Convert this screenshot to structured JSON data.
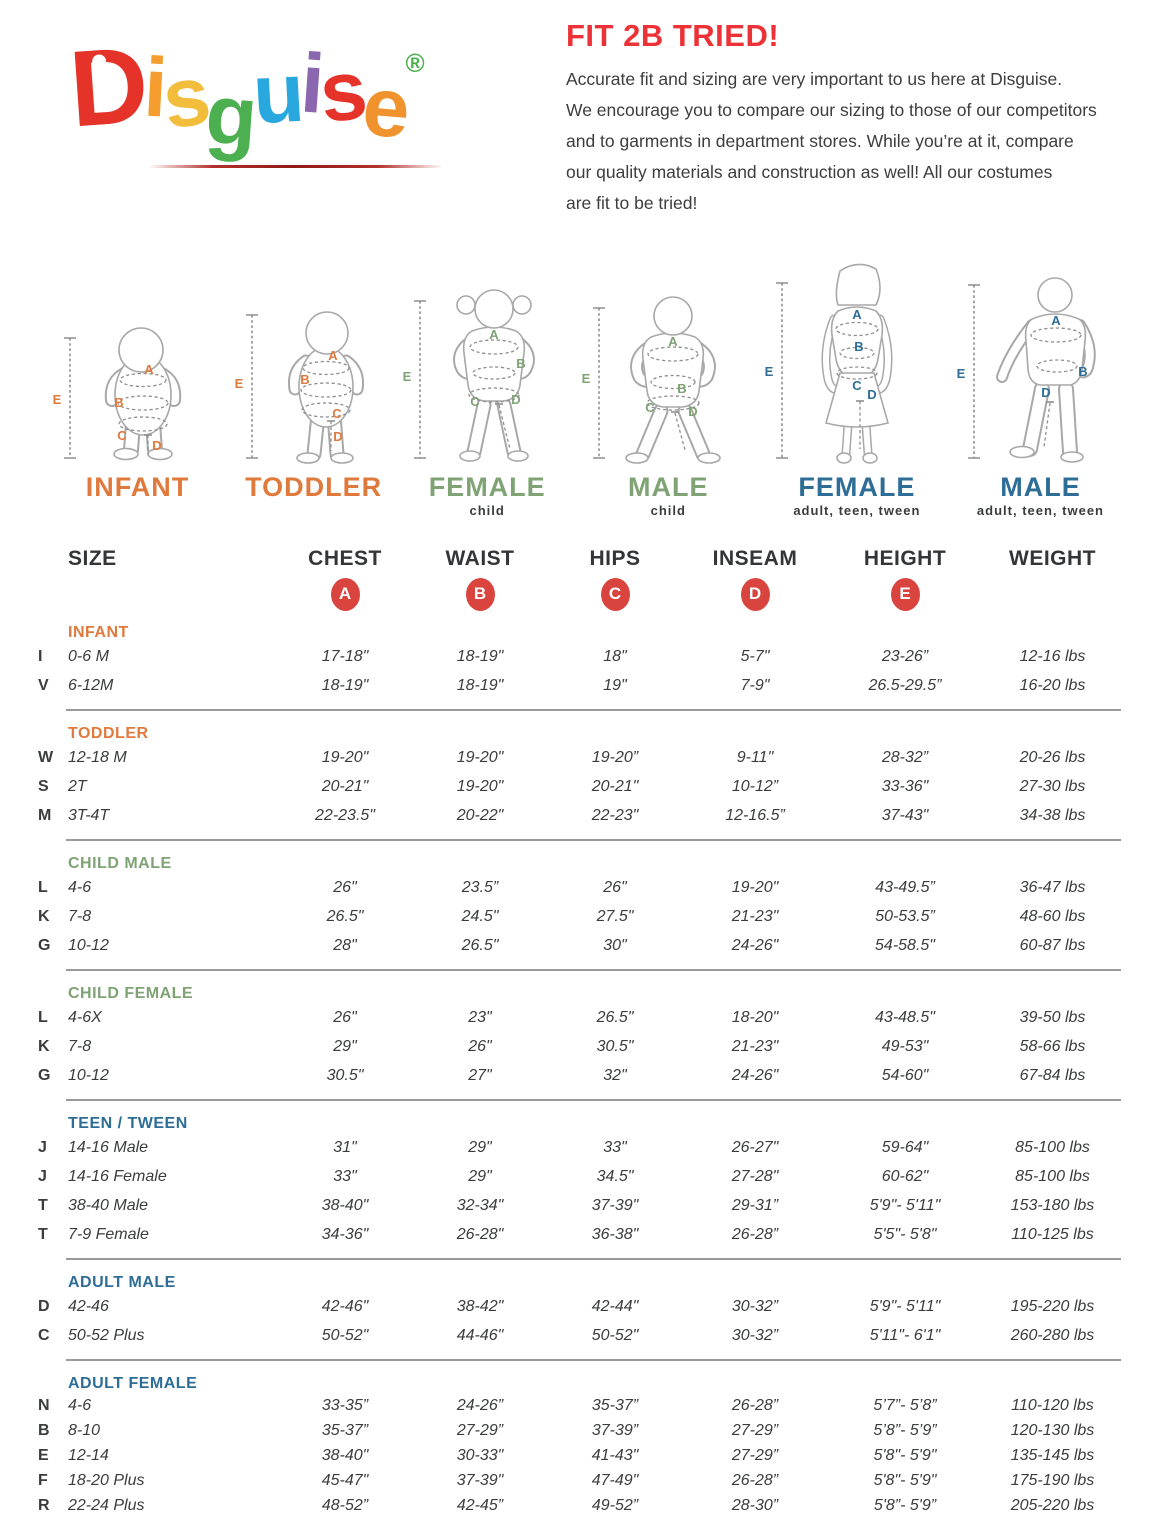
{
  "logo": {
    "letters": [
      {
        "char": "D",
        "color": "#e63329"
      },
      {
        "char": "i",
        "color": "#f59d2f"
      },
      {
        "char": "s",
        "color": "#f2bd3b"
      },
      {
        "char": "g",
        "color": "#4caf50"
      },
      {
        "char": "u",
        "color": "#29a8df"
      },
      {
        "char": "i",
        "color": "#8a67ae"
      },
      {
        "char": "s",
        "color": "#e63329"
      },
      {
        "char": "e",
        "color": "#f0932e"
      }
    ],
    "registered": "®",
    "registered_color": "#4caf50"
  },
  "intro": {
    "title": "FIT 2B TRIED!",
    "title_color": "#ed3237",
    "lines": [
      "Accurate fit and sizing are very important to us here at Disguise.",
      "We encourage you to compare our sizing to those of our competitors",
      "and to garments in department stores. While you’re at it, compare",
      "our quality materials and construction as well! All our costumes",
      "are fit to be tried!"
    ]
  },
  "figures": [
    {
      "label": "INFANT",
      "sublabel": "",
      "color": "#e0793c",
      "markers": [
        "A",
        "B",
        "C",
        "D"
      ],
      "measure_label": "E"
    },
    {
      "label": "TODDLER",
      "sublabel": "",
      "color": "#e0793c",
      "markers": [
        "A",
        "B",
        "C",
        "D"
      ],
      "measure_label": "E"
    },
    {
      "label": "FEMALE",
      "sublabel": "child",
      "color": "#7fa374",
      "markers": [
        "A",
        "B",
        "C",
        "D"
      ],
      "measure_label": "E"
    },
    {
      "label": "MALE",
      "sublabel": "child",
      "color": "#7fa374",
      "markers": [
        "A",
        "B",
        "C",
        "D"
      ],
      "measure_label": "E"
    },
    {
      "label": "FEMALE",
      "sublabel": "adult, teen, tween",
      "color": "#2e6e96",
      "markers": [
        "A",
        "B",
        "C",
        "D"
      ],
      "measure_label": "E"
    },
    {
      "label": "MALE",
      "sublabel": "adult, teen, tween",
      "color": "#2e6e96",
      "markers": [
        "A",
        "B",
        "D"
      ],
      "measure_label": "E"
    }
  ],
  "table": {
    "headers": [
      "SIZE",
      "CHEST",
      "WAIST",
      "HIPS",
      "INSEAM",
      "HEIGHT",
      "WEIGHT"
    ],
    "badges": [
      "A",
      "B",
      "C",
      "D",
      "E"
    ],
    "badge_color": "#d9453e",
    "sections": [
      {
        "name": "INFANT",
        "color": "#e0793c",
        "rows": [
          {
            "code": "I",
            "size": "0-6 M",
            "values": [
              "17-18\"",
              "18-19\"",
              "18\"",
              "5-7\"",
              "23-26”",
              "12-16 lbs"
            ]
          },
          {
            "code": "V",
            "size": "6-12M",
            "values": [
              "18-19\"",
              "18-19\"",
              "19\"",
              "7-9\"",
              "26.5-29.5”",
              "16-20 lbs"
            ]
          }
        ]
      },
      {
        "name": "TODDLER",
        "color": "#e0793c",
        "rows": [
          {
            "code": "W",
            "size": "12-18 M",
            "values": [
              "19-20\"",
              "19-20\"",
              "19-20”",
              "9-11\"",
              "28-32”",
              "20-26 lbs"
            ]
          },
          {
            "code": "S",
            "size": "2T",
            "values": [
              "20-21\"",
              "19-20\"",
              "20-21\"",
              "10-12”",
              "33-36\"",
              "27-30 lbs"
            ]
          },
          {
            "code": "M",
            "size": "3T-4T",
            "values": [
              "22-23.5\"",
              "20-22\"",
              "22-23\"",
              "12-16.5”",
              "37-43\"",
              "34-38 lbs"
            ]
          }
        ]
      },
      {
        "name": "CHILD MALE",
        "color": "#7fa374",
        "rows": [
          {
            "code": "L",
            "size": "4-6",
            "values": [
              "26\"",
              "23.5”",
              "26\"",
              "19-20\"",
              "43-49.5”",
              "36-47 lbs"
            ]
          },
          {
            "code": "K",
            "size": "7-8",
            "values": [
              "26.5\"",
              "24.5\"",
              "27.5\"",
              "21-23\"",
              "50-53.5”",
              "48-60 lbs"
            ]
          },
          {
            "code": "G",
            "size": "10-12",
            "values": [
              "28\"",
              "26.5\"",
              "30\"",
              "24-26\"",
              "54-58.5\"",
              "60-87 lbs"
            ]
          }
        ]
      },
      {
        "name": "CHILD FEMALE",
        "color": "#7fa374",
        "rows": [
          {
            "code": "L",
            "size": "4-6X",
            "values": [
              "26\"",
              "23\"",
              "26.5\"",
              "18-20\"",
              "43-48.5\"",
              "39-50 lbs"
            ]
          },
          {
            "code": "K",
            "size": "7-8",
            "values": [
              "29\"",
              "26\"",
              "30.5\"",
              "21-23\"",
              "49-53\"",
              "58-66 lbs"
            ]
          },
          {
            "code": "G",
            "size": "10-12",
            "values": [
              "30.5\"",
              "27\"",
              "32\"",
              "24-26\"",
              "54-60\"",
              "67-84 lbs"
            ]
          }
        ]
      },
      {
        "name": "TEEN / TWEEN",
        "color": "#2e6e96",
        "rows": [
          {
            "code": "J",
            "size": "14-16 Male",
            "values": [
              "31\"",
              "29\"",
              "33\"",
              "26-27\"",
              "59-64\"",
              "85-100 lbs"
            ]
          },
          {
            "code": "J",
            "size": "14-16 Female",
            "values": [
              "33\"",
              "29\"",
              "34.5\"",
              "27-28\"",
              "60-62\"",
              "85-100 lbs"
            ]
          },
          {
            "code": "T",
            "size": "38-40 Male",
            "values": [
              "38-40\"",
              "32-34\"",
              "37-39\"",
              "29-31”",
              "5'9\"- 5'11\"",
              "153-180 lbs"
            ]
          },
          {
            "code": "T",
            "size": "7-9 Female",
            "values": [
              "34-36\"",
              "26-28\"",
              "36-38\"",
              "26-28”",
              "5'5\"- 5'8\"",
              "110-125 lbs"
            ]
          }
        ]
      },
      {
        "name": "ADULT MALE",
        "color": "#2e6e96",
        "rows": [
          {
            "code": "D",
            "size": "42-46",
            "values": [
              "42-46\"",
              "38-42\"",
              "42-44\"",
              "30-32”",
              "5'9\"- 5'11\"",
              "195-220 lbs"
            ]
          },
          {
            "code": "C",
            "size": "50-52 Plus",
            "values": [
              "50-52\"",
              "44-46\"",
              "50-52\"",
              "30-32”",
              "5'11\"- 6'1\"",
              "260-280 lbs"
            ]
          }
        ]
      },
      {
        "name": "ADULT FEMALE",
        "color": "#2e6e96",
        "rows": [
          {
            "code": "N",
            "size": "4-6",
            "values": [
              "33-35”",
              "24-26”",
              "35-37”",
              "26-28”",
              "5’7”- 5’8”",
              "110-120 lbs"
            ]
          },
          {
            "code": "B",
            "size": "8-10",
            "values": [
              "35-37”",
              "27-29”",
              "37-39”",
              "27-29”",
              "5’8”- 5’9”",
              "120-130 lbs"
            ]
          },
          {
            "code": "E",
            "size": "12-14",
            "values": [
              "38-40\"",
              "30-33\"",
              "41-43\"",
              "27-29”",
              "5'8\"- 5'9\"",
              "135-145 lbs"
            ]
          },
          {
            "code": "F",
            "size": "18-20 Plus",
            "values": [
              "45-47\"",
              "37-39\"",
              "47-49\"",
              "26-28”",
              "5'8\"- 5'9\"",
              "175-190 lbs"
            ]
          },
          {
            "code": "R",
            "size": "22-24 Plus",
            "values": [
              "48-52”",
              "42-45”",
              "49-52”",
              "28-30”",
              "5'8”- 5'9”",
              "205-220 lbs"
            ]
          }
        ]
      }
    ]
  }
}
